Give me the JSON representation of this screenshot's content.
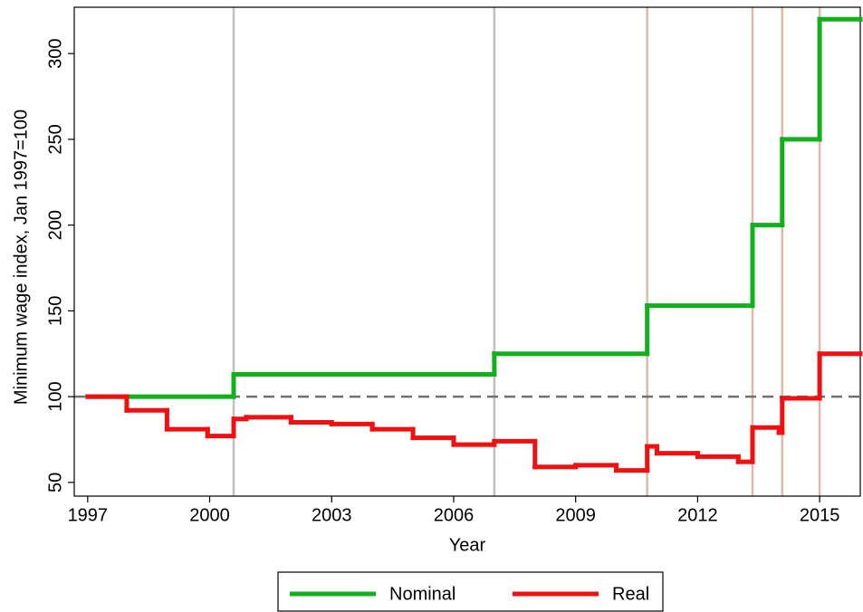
{
  "chart_data": {
    "type": "step-line",
    "xlabel": "Year",
    "ylabel": "Minimum wage index, Jan 1997=100",
    "xlim": [
      1996.67,
      2016
    ],
    "ylim": [
      42,
      327
    ],
    "xticks": [
      1997,
      2000,
      2003,
      2006,
      2009,
      2012,
      2015
    ],
    "yticks": [
      50,
      100,
      150,
      200,
      250,
      300
    ],
    "reference_line": {
      "y": 100,
      "color": "#707070"
    },
    "vlines": [
      {
        "x": 2000.59,
        "color": "#c0c0c0"
      },
      {
        "x": 2007,
        "color": "#c0c0c0"
      },
      {
        "x": 2010.76,
        "color": "#e0b8a8"
      },
      {
        "x": 2013.35,
        "color": "#e0b8a8"
      },
      {
        "x": 2014.08,
        "color": "#e0b8a8"
      },
      {
        "x": 2015,
        "color": "#e0b8a8"
      }
    ],
    "legend": "bottom",
    "series": [
      {
        "name": "Nominal",
        "color": "#12b01c",
        "x": [
          1997,
          2000.59,
          2007,
          2010.76,
          2013.35,
          2014.08,
          2015,
          2016
        ],
        "values": [
          100,
          113,
          125,
          153,
          200,
          250,
          320,
          320
        ]
      },
      {
        "name": "Real",
        "color": "#f01010",
        "x": [
          1997,
          1997.96,
          1998.95,
          1999.95,
          2000.59,
          2000.9,
          2002,
          2003,
          2004,
          2005,
          2006,
          2007,
          2008,
          2009,
          2010,
          2010.76,
          2011,
          2012,
          2013,
          2013.35,
          2014,
          2014.08,
          2015,
          2016
        ],
        "values": [
          100,
          92,
          81,
          77,
          87,
          88,
          85,
          84,
          81,
          76,
          72,
          74,
          59,
          60,
          57,
          71,
          67,
          65,
          62,
          82,
          79,
          99,
          125,
          125
        ]
      }
    ]
  }
}
